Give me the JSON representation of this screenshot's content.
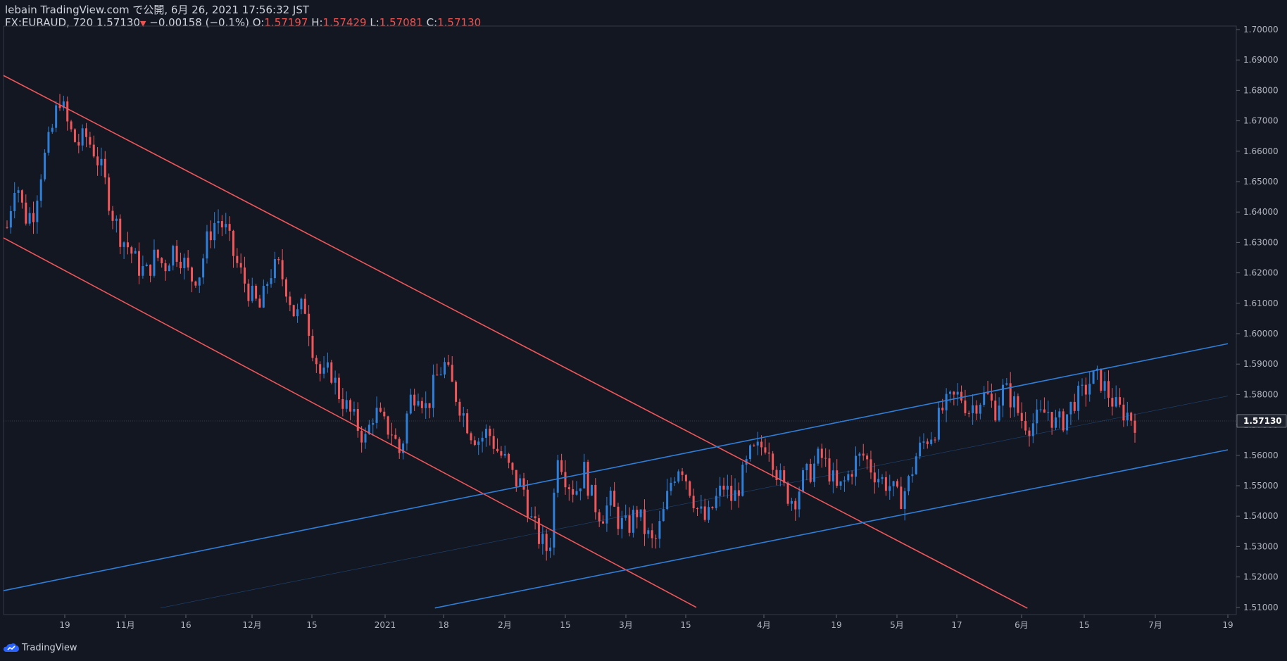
{
  "header": {
    "line1": "lebain TradingView.com で公開, 6月 26, 2021 17:56:32 JST",
    "symbol": "FX:EURAUD, 720",
    "last": "1.57130",
    "arrow": "▼",
    "change": "−0.00158 (−0.1%)",
    "o_label": "O:",
    "o_val": "1.57197",
    "h_label": "H:",
    "h_val": "1.57429",
    "l_label": "L:",
    "l_val": "1.57081",
    "c_label": "C:",
    "c_val": "1.57130"
  },
  "footer": {
    "brand": "TradingView",
    "logo_icon": "tradingview-cloud-icon"
  },
  "colors": {
    "bg": "#131722",
    "up": "#2962ff",
    "down": "#ef5350",
    "up_candle": "#2f7ed8",
    "down_candle": "#f0575a",
    "grid": "#2a2e39"
  },
  "chart_data": {
    "type": "candlestick",
    "symbol": "FX:EURAUD",
    "interval": "720",
    "ylim": [
      1.51,
      1.7
    ],
    "y_ticks": [
      "1.70000",
      "1.69000",
      "1.68000",
      "1.67000",
      "1.66000",
      "1.65000",
      "1.64000",
      "1.63000",
      "1.62000",
      "1.61000",
      "1.60000",
      "1.59000",
      "1.58000",
      "1.57000",
      "1.56000",
      "1.55000",
      "1.54000",
      "1.53000",
      "1.52000",
      "1.51000"
    ],
    "last_price": "1.57130",
    "x_ticks": [
      "19",
      "11月",
      "16",
      "12月",
      "15",
      "2021",
      "18",
      "2月",
      "15",
      "3月",
      "15",
      "4月",
      "19",
      "5月",
      "17",
      "6月",
      "15",
      "7月",
      "19"
    ],
    "close_path": [
      1.635,
      1.652,
      1.638,
      1.64,
      1.655,
      1.665,
      1.678,
      1.668,
      1.662,
      1.665,
      1.66,
      1.652,
      1.64,
      1.632,
      1.628,
      1.622,
      1.62,
      1.626,
      1.622,
      1.628,
      1.625,
      1.618,
      1.62,
      1.632,
      1.638,
      1.634,
      1.625,
      1.618,
      1.612,
      1.608,
      1.62,
      1.622,
      1.615,
      1.605,
      1.61,
      1.595,
      1.585,
      1.588,
      1.58,
      1.575,
      1.57,
      1.565,
      1.575,
      1.57,
      1.568,
      1.56,
      1.578,
      1.582,
      1.575,
      1.585,
      1.59,
      1.582,
      1.575,
      1.568,
      1.565,
      1.568,
      1.562,
      1.558,
      1.552,
      1.55,
      1.538,
      1.532,
      1.528,
      1.562,
      1.552,
      1.548,
      1.555,
      1.545,
      1.54,
      1.545,
      1.538,
      1.536,
      1.542,
      1.535,
      1.53,
      1.54,
      1.552,
      1.558,
      1.55,
      1.542,
      1.538,
      1.545,
      1.55,
      1.545,
      1.552,
      1.56,
      1.562,
      1.565,
      1.555,
      1.548,
      1.545,
      1.552,
      1.555,
      1.56,
      1.555,
      1.548,
      1.552,
      1.558,
      1.56,
      1.555,
      1.552,
      1.55,
      1.545,
      1.55,
      1.56,
      1.565,
      1.568,
      1.575,
      1.578,
      1.58,
      1.575,
      1.578,
      1.58,
      1.575,
      1.582,
      1.578,
      1.572,
      1.57,
      1.572,
      1.575,
      1.57,
      1.572,
      1.578,
      1.58,
      1.585,
      1.585,
      1.58,
      1.575,
      1.574,
      1.5713
    ],
    "trendlines": [
      {
        "name": "channel-down-upper",
        "color": "#f0575a",
        "x": [
          "2020-10-11",
          "2021-06-03"
        ],
        "y": [
          1.6849,
          1.5097
        ]
      },
      {
        "name": "channel-down-lower",
        "color": "#f0575a",
        "x": [
          "2020-10-11",
          "2021-03-19"
        ],
        "y": [
          1.6315,
          1.51
        ]
      },
      {
        "name": "channel-up-upper",
        "color": "#2f7ed8",
        "x": [
          "2020-10-11",
          "2021-07-19"
        ],
        "y": [
          1.5155,
          1.5967
        ]
      },
      {
        "name": "channel-up-lower",
        "color": "#2f7ed8",
        "x": [
          "2021-01-18",
          "2021-07-19"
        ],
        "y": [
          1.5098,
          1.5618
        ]
      },
      {
        "name": "channel-up-mid",
        "color": "#2f7ed8",
        "x": [
          "2020-11-16",
          "2021-07-19"
        ],
        "y": [
          1.5098,
          1.5795
        ]
      }
    ]
  }
}
